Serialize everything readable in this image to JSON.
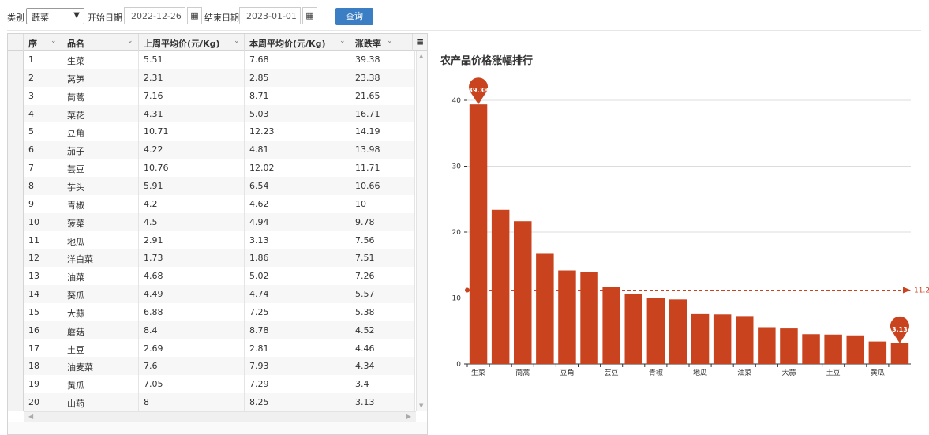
{
  "filters": {
    "category_label": "类别",
    "category_value": "蔬菜",
    "start_label": "开始日期",
    "start_value": "2022-12-26",
    "end_label": "结束日期",
    "end_value": "2023-01-01",
    "query_label": "查询"
  },
  "table": {
    "columns": [
      "序",
      "品名",
      "上周平均价(元/Kg)",
      "本周平均价(元/Kg)",
      "涨跌率"
    ],
    "rows": [
      [
        "1",
        "生菜",
        "5.51",
        "7.68",
        "39.38"
      ],
      [
        "2",
        "莴笋",
        "2.31",
        "2.85",
        "23.38"
      ],
      [
        "3",
        "茼蒿",
        "7.16",
        "8.71",
        "21.65"
      ],
      [
        "4",
        "菜花",
        "4.31",
        "5.03",
        "16.71"
      ],
      [
        "5",
        "豆角",
        "10.71",
        "12.23",
        "14.19"
      ],
      [
        "6",
        "茄子",
        "4.22",
        "4.81",
        "13.98"
      ],
      [
        "7",
        "芸豆",
        "10.76",
        "12.02",
        "11.71"
      ],
      [
        "8",
        "芋头",
        "5.91",
        "6.54",
        "10.66"
      ],
      [
        "9",
        "青椒",
        "4.2",
        "4.62",
        "10"
      ],
      [
        "10",
        "菠菜",
        "4.5",
        "4.94",
        "9.78"
      ],
      [
        "11",
        "地瓜",
        "2.91",
        "3.13",
        "7.56"
      ],
      [
        "12",
        "洋白菜",
        "1.73",
        "1.86",
        "7.51"
      ],
      [
        "13",
        "油菜",
        "4.68",
        "5.02",
        "7.26"
      ],
      [
        "14",
        "葵瓜",
        "4.49",
        "4.74",
        "5.57"
      ],
      [
        "15",
        "大蒜",
        "6.88",
        "7.25",
        "5.38"
      ],
      [
        "16",
        "蘑菇",
        "8.4",
        "8.78",
        "4.52"
      ],
      [
        "17",
        "土豆",
        "2.69",
        "2.81",
        "4.46"
      ],
      [
        "18",
        "油麦菜",
        "7.6",
        "7.93",
        "4.34"
      ],
      [
        "19",
        "黄瓜",
        "7.05",
        "7.29",
        "3.4"
      ],
      [
        "20",
        "山药",
        "8",
        "8.25",
        "3.13"
      ]
    ]
  },
  "chart_data": {
    "type": "bar",
    "title": "农产品价格涨幅排行",
    "categories": [
      "生菜",
      "莴笋",
      "茼蒿",
      "菜花",
      "豆角",
      "茄子",
      "芸豆",
      "芋头",
      "青椒",
      "菠菜",
      "地瓜",
      "洋白菜",
      "油菜",
      "葵瓜",
      "大蒜",
      "蘑菇",
      "土豆",
      "油麦菜",
      "黄瓜",
      "山药"
    ],
    "visible_x_labels": [
      "生菜",
      "",
      "茼蒿",
      "",
      "豆角",
      "",
      "芸豆",
      "",
      "青椒",
      "",
      "地瓜",
      "",
      "油菜",
      "",
      "大蒜",
      "",
      "土豆",
      "",
      "黄瓜",
      ""
    ],
    "values": [
      39.38,
      23.38,
      21.65,
      16.71,
      14.19,
      13.98,
      11.71,
      10.66,
      10,
      9.78,
      7.56,
      7.51,
      7.26,
      5.57,
      5.38,
      4.52,
      4.46,
      4.34,
      3.4,
      3.13
    ],
    "ylim": [
      0,
      40
    ],
    "yticks": [
      0,
      10,
      20,
      30,
      40
    ],
    "grid": true,
    "bar_color": "#c8431e",
    "mark_points": [
      {
        "label": "39.38",
        "value": 39.38,
        "category": "生菜"
      },
      {
        "label": "3.13",
        "value": 3.13,
        "category": "山药"
      }
    ],
    "mark_line": {
      "label": "11.2",
      "value": 11.2
    },
    "xlabel": "",
    "ylabel": ""
  }
}
